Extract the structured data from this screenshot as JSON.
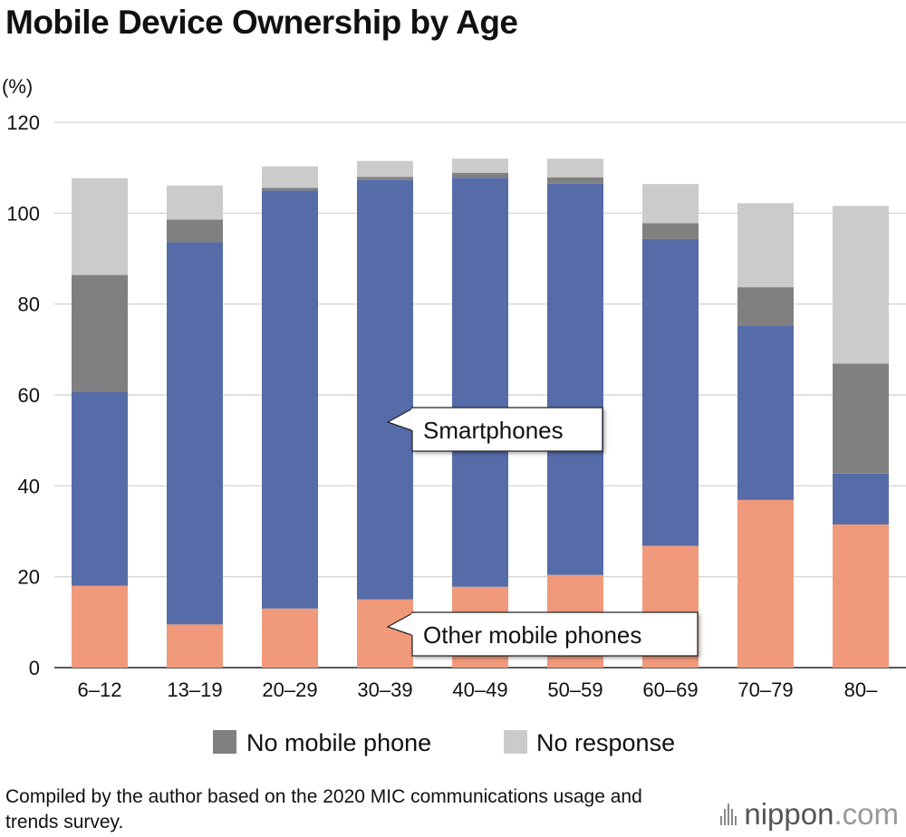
{
  "chart_data": {
    "type": "bar",
    "stacked": true,
    "title": "Mobile Device Ownership by Age",
    "ylabel": "(%)",
    "ylim": [
      0,
      120
    ],
    "yticks": [
      0,
      20,
      40,
      60,
      80,
      100,
      120
    ],
    "grid": true,
    "categories": [
      "6–12",
      "13–19",
      "20–29",
      "30–39",
      "40–49",
      "50–59",
      "60–69",
      "70–79",
      "80–"
    ],
    "series": [
      {
        "name": "Other mobile phones",
        "color": "#f09a7b",
        "values": [
          18,
          9.5,
          13,
          15,
          17.8,
          20.4,
          26.8,
          36.9,
          31.5
        ]
      },
      {
        "name": "Smartphones",
        "color": "#566ca8",
        "values": [
          42.6,
          84.1,
          92,
          92.3,
          90.0,
          86.1,
          67.5,
          38.4,
          11.2
        ]
      },
      {
        "name": "No mobile phone",
        "color": "#808080",
        "values": [
          25.8,
          5,
          0.6,
          0.7,
          1.1,
          1.4,
          3.5,
          8.4,
          24.2
        ]
      },
      {
        "name": "No response",
        "color": "#cbcbcb",
        "values": [
          21.3,
          7.5,
          4.7,
          3.5,
          3.1,
          4.1,
          8.6,
          18.5,
          34.7
        ]
      }
    ],
    "annotations": [
      "Smartphones",
      "Other mobile phones"
    ],
    "legend": [
      "No mobile phone",
      "No response"
    ]
  },
  "source": "Compiled by the author based on the 2020 MIC communications usage and trends survey.",
  "brand": {
    "name": "nippon",
    "suffix": ".com"
  }
}
